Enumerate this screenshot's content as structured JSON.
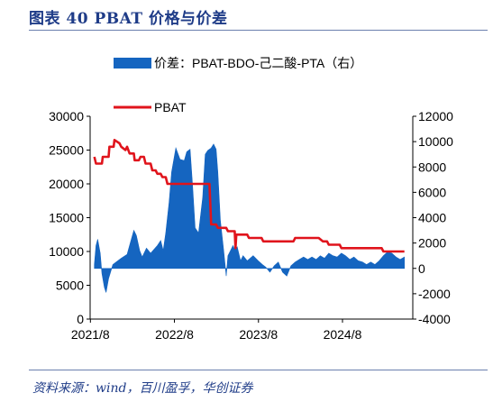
{
  "header": {
    "figure_title": "图表 40   PBAT 价格与价差"
  },
  "footer": {
    "source": "资料来源：wind，百川盈孚，华创证券"
  },
  "chart_data": {
    "type": "line+area",
    "x_tick_labels": [
      "2021/8",
      "2022/8",
      "2023/8",
      "2024/8"
    ],
    "ylim_left": [
      0,
      30000
    ],
    "yticks_left": [
      "0",
      "5000",
      "10000",
      "15000",
      "20000",
      "25000",
      "30000"
    ],
    "ylim_right": [
      -4000,
      12000
    ],
    "yticks_right": [
      "-4000",
      "-2000",
      "0",
      "2000",
      "4000",
      "6000",
      "8000",
      "10000",
      "12000"
    ],
    "grid": false,
    "legend_placement": "top",
    "series": [
      {
        "name": "价差：PBAT-BDO-己二酸-PTA（右）",
        "axis": "right",
        "style": "area",
        "color": "#1565c0",
        "points": [
          [
            2021.63,
            300
          ],
          [
            2021.65,
            1800
          ],
          [
            2021.67,
            2300
          ],
          [
            2021.7,
            1200
          ],
          [
            2021.72,
            -400
          ],
          [
            2021.75,
            -1500
          ],
          [
            2021.77,
            -1900
          ],
          [
            2021.8,
            -800
          ],
          [
            2021.85,
            300
          ],
          [
            2021.95,
            800
          ],
          [
            2022.02,
            1100
          ],
          [
            2022.07,
            2300
          ],
          [
            2022.1,
            3000
          ],
          [
            2022.13,
            2600
          ],
          [
            2022.17,
            1400
          ],
          [
            2022.2,
            900
          ],
          [
            2022.25,
            1600
          ],
          [
            2022.3,
            1200
          ],
          [
            2022.38,
            1800
          ],
          [
            2022.42,
            2200
          ],
          [
            2022.45,
            1400
          ],
          [
            2022.48,
            2800
          ],
          [
            2022.52,
            5200
          ],
          [
            2022.55,
            7600
          ],
          [
            2022.6,
            9500
          ],
          [
            2022.65,
            8600
          ],
          [
            2022.7,
            8500
          ],
          [
            2022.73,
            9200
          ],
          [
            2022.77,
            9400
          ],
          [
            2022.8,
            6500
          ],
          [
            2022.83,
            3200
          ],
          [
            2022.87,
            2800
          ],
          [
            2022.92,
            5600
          ],
          [
            2022.95,
            9000
          ],
          [
            2022.98,
            9300
          ],
          [
            2023.02,
            9500
          ],
          [
            2023.05,
            9800
          ],
          [
            2023.08,
            9400
          ],
          [
            2023.1,
            7600
          ],
          [
            2023.13,
            3800
          ],
          [
            2023.17,
            1400
          ],
          [
            2023.2,
            -600
          ],
          [
            2023.22,
            1000
          ],
          [
            2023.25,
            1400
          ],
          [
            2023.28,
            1800
          ],
          [
            2023.3,
            1500
          ],
          [
            2023.33,
            1700
          ],
          [
            2023.37,
            600
          ],
          [
            2023.4,
            1000
          ],
          [
            2023.45,
            600
          ],
          [
            2023.52,
            1000
          ],
          [
            2023.58,
            600
          ],
          [
            2023.63,
            300
          ],
          [
            2023.67,
            100
          ],
          [
            2023.72,
            -300
          ],
          [
            2023.77,
            200
          ],
          [
            2023.82,
            500
          ],
          [
            2023.87,
            -300
          ],
          [
            2023.92,
            -600
          ],
          [
            2023.97,
            200
          ],
          [
            2024.02,
            500
          ],
          [
            2024.07,
            700
          ],
          [
            2024.12,
            900
          ],
          [
            2024.17,
            700
          ],
          [
            2024.22,
            900
          ],
          [
            2024.27,
            700
          ],
          [
            2024.32,
            1000
          ],
          [
            2024.37,
            800
          ],
          [
            2024.42,
            1200
          ],
          [
            2024.47,
            1000
          ],
          [
            2024.52,
            900
          ],
          [
            2024.57,
            1200
          ],
          [
            2024.62,
            1000
          ],
          [
            2024.67,
            700
          ],
          [
            2024.72,
            900
          ],
          [
            2024.77,
            600
          ],
          [
            2024.82,
            500
          ],
          [
            2024.87,
            300
          ],
          [
            2024.92,
            500
          ],
          [
            2024.97,
            300
          ],
          [
            2025.02,
            600
          ],
          [
            2025.07,
            1000
          ],
          [
            2025.12,
            1300
          ],
          [
            2025.17,
            1200
          ],
          [
            2025.22,
            900
          ],
          [
            2025.27,
            700
          ],
          [
            2025.32,
            900
          ]
        ]
      },
      {
        "name": "PBAT",
        "axis": "left",
        "style": "line",
        "color": "#e0141c",
        "points": [
          [
            2021.63,
            24000
          ],
          [
            2021.65,
            23000
          ],
          [
            2021.72,
            23000
          ],
          [
            2021.73,
            24000
          ],
          [
            2021.8,
            24000
          ],
          [
            2021.81,
            25500
          ],
          [
            2021.86,
            25500
          ],
          [
            2021.87,
            26500
          ],
          [
            2021.93,
            26000
          ],
          [
            2021.95,
            25500
          ],
          [
            2022.0,
            25000
          ],
          [
            2022.02,
            25500
          ],
          [
            2022.05,
            24500
          ],
          [
            2022.1,
            24500
          ],
          [
            2022.11,
            23500
          ],
          [
            2022.16,
            23500
          ],
          [
            2022.18,
            24000
          ],
          [
            2022.22,
            24000
          ],
          [
            2022.24,
            23000
          ],
          [
            2022.3,
            23000
          ],
          [
            2022.32,
            22000
          ],
          [
            2022.36,
            22000
          ],
          [
            2022.38,
            21500
          ],
          [
            2022.42,
            21500
          ],
          [
            2022.44,
            21000
          ],
          [
            2022.48,
            21000
          ],
          [
            2022.5,
            20000
          ],
          [
            2022.6,
            20000
          ],
          [
            2022.62,
            20000
          ],
          [
            2022.8,
            20000
          ],
          [
            2022.82,
            20000
          ],
          [
            2022.98,
            20000
          ],
          [
            2023.0,
            20000
          ],
          [
            2023.02,
            14000
          ],
          [
            2023.08,
            14000
          ],
          [
            2023.1,
            13500
          ],
          [
            2023.2,
            13500
          ],
          [
            2023.22,
            13000
          ],
          [
            2023.3,
            13000
          ],
          [
            2023.31,
            10500
          ],
          [
            2023.32,
            12500
          ],
          [
            2023.45,
            12500
          ],
          [
            2023.47,
            12000
          ],
          [
            2023.62,
            12000
          ],
          [
            2023.64,
            11500
          ],
          [
            2023.8,
            11500
          ],
          [
            2023.82,
            11500
          ],
          [
            2024.0,
            11500
          ],
          [
            2024.02,
            12000
          ],
          [
            2024.3,
            12000
          ],
          [
            2024.35,
            11500
          ],
          [
            2024.4,
            11500
          ],
          [
            2024.42,
            11000
          ],
          [
            2024.55,
            11000
          ],
          [
            2024.57,
            10500
          ],
          [
            2024.9,
            10500
          ],
          [
            2024.92,
            10500
          ],
          [
            2025.05,
            10500
          ],
          [
            2025.07,
            10000
          ],
          [
            2025.32,
            10000
          ]
        ]
      }
    ]
  }
}
